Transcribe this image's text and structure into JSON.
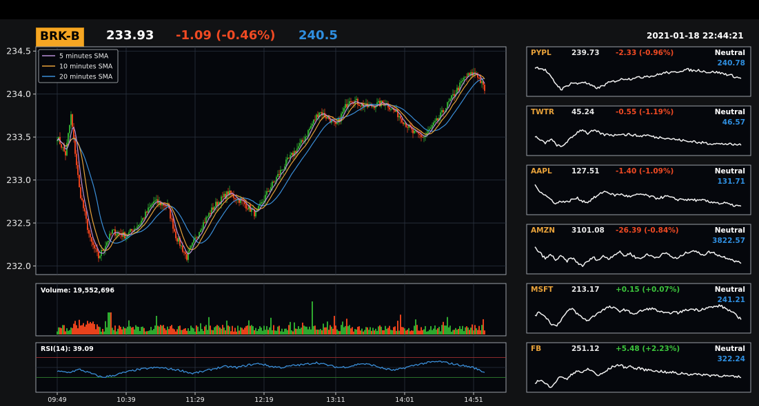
{
  "header": {
    "symbol": "BRK-B",
    "price": "233.93",
    "change": "-1.09 (-0.46%)",
    "target": "240.5",
    "datetime": "2021-01-18 22:44:21"
  },
  "colors": {
    "symbol_bg": "#f5a623",
    "negative": "#f04a23",
    "positive": "#3cc43c",
    "target": "#2f8fe0",
    "candle_up": "#2fa82f",
    "candle_down": "#e8421c",
    "sma5": "#b98fd8",
    "sma10": "#e8a23a",
    "sma20": "#3a8ed8",
    "rsi_line": "#3a8ed8"
  },
  "chart_data": [
    {
      "type": "candlestick",
      "panel": "main",
      "ylim": [
        231.9,
        234.55
      ],
      "yticks": [
        "234.5",
        "234.0",
        "233.5",
        "233.0",
        "232.5",
        "232.0"
      ],
      "xticks": [
        "09:49",
        "10:39",
        "11:29",
        "12:19",
        "13:11",
        "14:01",
        "14:51"
      ],
      "legend": [
        "5 minutes SMA",
        "10 minutes SMA",
        "20 minutes SMA"
      ],
      "legend_position": "top-left",
      "grid": true,
      "approx_close_path": [
        {
          "t": "09:49",
          "v": 233.5
        },
        {
          "t": "09:55",
          "v": 233.3
        },
        {
          "t": "09:59",
          "v": 233.75
        },
        {
          "t": "10:05",
          "v": 232.9
        },
        {
          "t": "10:13",
          "v": 232.3
        },
        {
          "t": "10:19",
          "v": 232.1
        },
        {
          "t": "10:29",
          "v": 232.4
        },
        {
          "t": "10:39",
          "v": 232.35
        },
        {
          "t": "10:49",
          "v": 232.5
        },
        {
          "t": "10:59",
          "v": 232.75
        },
        {
          "t": "11:09",
          "v": 232.7
        },
        {
          "t": "11:15",
          "v": 232.35
        },
        {
          "t": "11:23",
          "v": 232.1
        },
        {
          "t": "11:33",
          "v": 232.45
        },
        {
          "t": "11:43",
          "v": 232.7
        },
        {
          "t": "11:53",
          "v": 232.85
        },
        {
          "t": "12:03",
          "v": 232.75
        },
        {
          "t": "12:13",
          "v": 232.6
        },
        {
          "t": "12:23",
          "v": 232.9
        },
        {
          "t": "12:35",
          "v": 233.2
        },
        {
          "t": "12:47",
          "v": 233.45
        },
        {
          "t": "12:59",
          "v": 233.8
        },
        {
          "t": "13:07",
          "v": 233.7
        },
        {
          "t": "13:11",
          "v": 233.62
        },
        {
          "t": "13:21",
          "v": 233.95
        },
        {
          "t": "13:33",
          "v": 233.85
        },
        {
          "t": "13:47",
          "v": 233.9
        },
        {
          "t": "13:57",
          "v": 233.75
        },
        {
          "t": "14:07",
          "v": 233.55
        },
        {
          "t": "14:15",
          "v": 233.5
        },
        {
          "t": "14:25",
          "v": 233.7
        },
        {
          "t": "14:35",
          "v": 233.95
        },
        {
          "t": "14:45",
          "v": 234.2
        },
        {
          "t": "14:53",
          "v": 234.25
        },
        {
          "t": "14:59",
          "v": 234.05
        }
      ]
    },
    {
      "type": "bar",
      "panel": "volume",
      "title": "Volume: 19,552,696"
    },
    {
      "type": "line",
      "panel": "rsi",
      "title": "RSI(14): 39.09",
      "ylim": [
        0,
        100
      ],
      "reference_lines": [
        70,
        30
      ],
      "approx_values": [
        42,
        40,
        46,
        38,
        30,
        34,
        40,
        45,
        48,
        50,
        47,
        44,
        38,
        42,
        48,
        52,
        50,
        55,
        58,
        52,
        50,
        54,
        56,
        60,
        55,
        50,
        52,
        58,
        55,
        48,
        44,
        50,
        56,
        60,
        62,
        58,
        54,
        50,
        40
      ]
    }
  ],
  "watchlist": [
    {
      "symbol": "PYPL",
      "price": "239.73",
      "change": "-2.33 (-0.96%)",
      "dir": "down",
      "rating": "Neutral",
      "target": "240.78",
      "spark": [
        0.9,
        0.88,
        0.8,
        0.55,
        0.3,
        0.1,
        0.22,
        0.35,
        0.3,
        0.38,
        0.3,
        0.2,
        0.15,
        0.25,
        0.35,
        0.4,
        0.45,
        0.5,
        0.48,
        0.55,
        0.52,
        0.6,
        0.58,
        0.62,
        0.68,
        0.72,
        0.7,
        0.75,
        0.8,
        0.82,
        0.78,
        0.8,
        0.76,
        0.72,
        0.74,
        0.7,
        0.66,
        0.62,
        0.55,
        0.5
      ]
    },
    {
      "symbol": "TWTR",
      "price": "45.24",
      "change": "-0.55 (-1.19%)",
      "dir": "down",
      "rating": "Neutral",
      "target": "46.57",
      "spark": [
        0.55,
        0.4,
        0.3,
        0.45,
        0.25,
        0.15,
        0.35,
        0.5,
        0.7,
        0.8,
        0.65,
        0.75,
        0.7,
        0.6,
        0.62,
        0.58,
        0.65,
        0.6,
        0.62,
        0.58,
        0.55,
        0.6,
        0.55,
        0.5,
        0.52,
        0.48,
        0.45,
        0.42,
        0.4,
        0.35,
        0.38,
        0.3,
        0.32,
        0.28,
        0.3,
        0.26,
        0.28,
        0.25,
        0.24,
        0.26
      ]
    },
    {
      "symbol": "AAPL",
      "price": "127.51",
      "change": "-1.40 (-1.09%)",
      "dir": "down",
      "rating": "Neutral",
      "target": "131.71",
      "spark": [
        0.9,
        0.7,
        0.55,
        0.4,
        0.25,
        0.35,
        0.3,
        0.4,
        0.45,
        0.35,
        0.3,
        0.45,
        0.55,
        0.7,
        0.65,
        0.55,
        0.6,
        0.55,
        0.5,
        0.55,
        0.6,
        0.55,
        0.5,
        0.45,
        0.48,
        0.52,
        0.45,
        0.4,
        0.42,
        0.38,
        0.4,
        0.35,
        0.38,
        0.3,
        0.32,
        0.25,
        0.28,
        0.2,
        0.18,
        0.15
      ]
    },
    {
      "symbol": "AMZN",
      "price": "3101.08",
      "change": "-26.39 (-0.84%)",
      "dir": "down",
      "rating": "Neutral",
      "target": "3822.57",
      "spark": [
        0.8,
        0.6,
        0.4,
        0.55,
        0.35,
        0.5,
        0.3,
        0.45,
        0.25,
        0.15,
        0.3,
        0.45,
        0.35,
        0.5,
        0.4,
        0.55,
        0.65,
        0.5,
        0.6,
        0.45,
        0.4,
        0.55,
        0.5,
        0.45,
        0.55,
        0.6,
        0.45,
        0.4,
        0.55,
        0.65,
        0.7,
        0.6,
        0.55,
        0.65,
        0.6,
        0.5,
        0.45,
        0.4,
        0.3,
        0.25
      ]
    },
    {
      "symbol": "MSFT",
      "price": "213.17",
      "change": "+0.15 (+0.07%)",
      "dir": "up",
      "rating": "Neutral",
      "target": "241.21",
      "spark": [
        0.5,
        0.6,
        0.45,
        0.2,
        0.1,
        0.35,
        0.6,
        0.75,
        0.55,
        0.4,
        0.3,
        0.45,
        0.6,
        0.7,
        0.8,
        0.75,
        0.65,
        0.7,
        0.6,
        0.55,
        0.65,
        0.7,
        0.75,
        0.68,
        0.6,
        0.55,
        0.62,
        0.58,
        0.65,
        0.7,
        0.72,
        0.68,
        0.75,
        0.78,
        0.8,
        0.85,
        0.75,
        0.65,
        0.5,
        0.35
      ]
    },
    {
      "symbol": "FB",
      "price": "251.12",
      "change": "+5.48 (+2.23%)",
      "dir": "up",
      "rating": "Neutral",
      "target": "322.24",
      "spark": [
        0.2,
        0.3,
        0.15,
        0.05,
        0.25,
        0.45,
        0.3,
        0.5,
        0.65,
        0.55,
        0.7,
        0.6,
        0.45,
        0.55,
        0.7,
        0.8,
        0.85,
        0.75,
        0.8,
        0.7,
        0.72,
        0.65,
        0.68,
        0.6,
        0.62,
        0.55,
        0.58,
        0.52,
        0.55,
        0.5,
        0.52,
        0.48,
        0.5,
        0.46,
        0.48,
        0.45,
        0.44,
        0.42,
        0.4,
        0.42
      ]
    }
  ]
}
